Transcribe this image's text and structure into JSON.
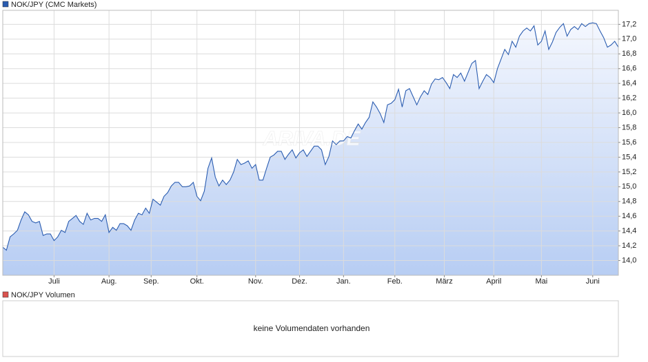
{
  "chart_data": [
    {
      "type": "line",
      "title": "NOK/JPY (CMC Markets)",
      "color": "#2a5cb0",
      "watermark": "ARIVA.DE",
      "grid": true,
      "values": [
        14.18,
        14.14,
        14.32,
        14.36,
        14.41,
        14.55,
        14.66,
        14.62,
        14.53,
        14.51,
        14.53,
        14.34,
        14.36,
        14.36,
        14.27,
        14.32,
        14.41,
        14.38,
        14.53,
        14.57,
        14.61,
        14.53,
        14.49,
        14.64,
        14.55,
        14.57,
        14.57,
        14.53,
        14.62,
        14.38,
        14.45,
        14.41,
        14.5,
        14.5,
        14.47,
        14.41,
        14.55,
        14.64,
        14.62,
        14.71,
        14.64,
        14.83,
        14.79,
        14.75,
        14.87,
        14.92,
        15.01,
        15.06,
        15.06,
        15.0,
        15.0,
        15.01,
        15.06,
        14.87,
        14.81,
        14.94,
        15.25,
        15.39,
        15.13,
        15.01,
        15.09,
        15.03,
        15.09,
        15.2,
        15.37,
        15.3,
        15.32,
        15.35,
        15.25,
        15.3,
        15.09,
        15.09,
        15.25,
        15.4,
        15.43,
        15.48,
        15.48,
        15.37,
        15.44,
        15.5,
        15.39,
        15.46,
        15.5,
        15.41,
        15.48,
        15.55,
        15.55,
        15.5,
        15.3,
        15.41,
        15.62,
        15.57,
        15.62,
        15.62,
        15.68,
        15.66,
        15.76,
        15.85,
        15.78,
        15.87,
        15.94,
        16.15,
        16.08,
        15.99,
        15.87,
        16.11,
        16.13,
        16.18,
        16.32,
        16.08,
        16.3,
        16.33,
        16.22,
        16.11,
        16.22,
        16.3,
        16.25,
        16.39,
        16.46,
        16.45,
        16.48,
        16.41,
        16.33,
        16.52,
        16.48,
        16.54,
        16.43,
        16.55,
        16.67,
        16.71,
        16.33,
        16.43,
        16.52,
        16.48,
        16.41,
        16.6,
        16.73,
        16.86,
        16.79,
        16.97,
        16.89,
        17.04,
        17.11,
        17.15,
        17.11,
        17.18,
        16.92,
        16.97,
        17.11,
        16.86,
        16.96,
        17.09,
        17.16,
        17.21,
        17.04,
        17.13,
        17.17,
        17.13,
        17.21,
        17.17,
        17.21,
        17.22,
        17.21,
        17.11,
        17.02,
        16.89,
        16.92,
        16.97,
        16.89
      ],
      "xlim": [
        0,
        168
      ],
      "xticks": [
        {
          "value": 14,
          "label": "Juli"
        },
        {
          "value": 29,
          "label": "Aug."
        },
        {
          "value": 40.5,
          "label": "Sep."
        },
        {
          "value": 53,
          "label": "Okt."
        },
        {
          "value": 69,
          "label": "Nov."
        },
        {
          "value": 81,
          "label": "Dez."
        },
        {
          "value": 93,
          "label": "Jan."
        },
        {
          "value": 107,
          "label": "Feb."
        },
        {
          "value": 120.5,
          "label": "März"
        },
        {
          "value": 134,
          "label": "April"
        },
        {
          "value": 147,
          "label": "Mai"
        },
        {
          "value": 161,
          "label": "Juni"
        }
      ],
      "ylim": [
        13.8,
        17.39
      ],
      "yticks": [
        {
          "value": 14.0,
          "label": "14,0"
        },
        {
          "value": 14.2,
          "label": "14,2"
        },
        {
          "value": 14.4,
          "label": "14,4"
        },
        {
          "value": 14.6,
          "label": "14,6"
        },
        {
          "value": 14.8,
          "label": "14,8"
        },
        {
          "value": 15.0,
          "label": "15,0"
        },
        {
          "value": 15.2,
          "label": "15,2"
        },
        {
          "value": 15.4,
          "label": "15,4"
        },
        {
          "value": 15.6,
          "label": "15,6"
        },
        {
          "value": 15.8,
          "label": "15,8"
        },
        {
          "value": 16.0,
          "label": "16,0"
        },
        {
          "value": 16.2,
          "label": "16,2"
        },
        {
          "value": 16.4,
          "label": "16,4"
        },
        {
          "value": 16.6,
          "label": "16,6"
        },
        {
          "value": 16.8,
          "label": "16,8"
        },
        {
          "value": 17.0,
          "label": "17,0"
        },
        {
          "value": 17.2,
          "label": "17,2"
        }
      ]
    },
    {
      "type": "bar",
      "title": "NOK/JPY Volumen",
      "color": "#d9534f",
      "annotation": "keine Volumendaten vorhanden"
    }
  ]
}
